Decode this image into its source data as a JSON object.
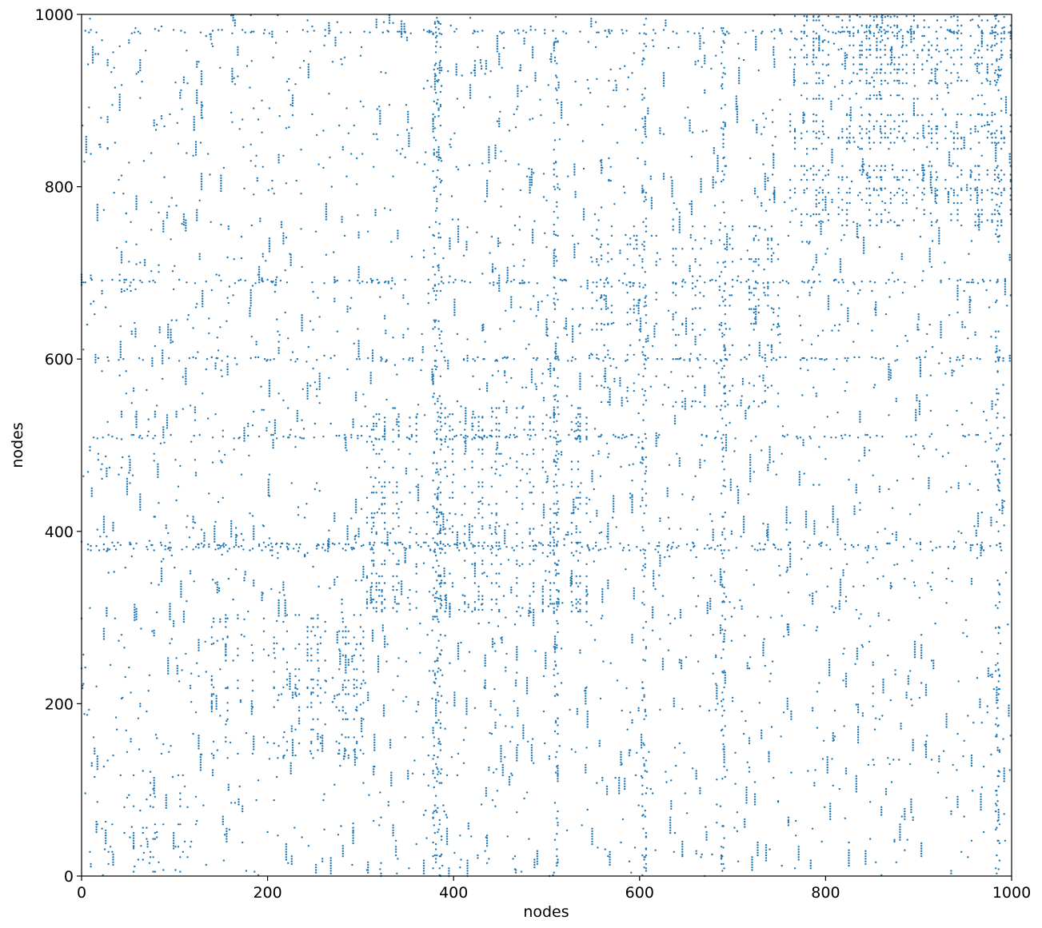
{
  "chart_data": {
    "type": "scatter",
    "title": "",
    "xlabel": "nodes",
    "ylabel": "nodes",
    "xlim": [
      0,
      1000
    ],
    "ylim": [
      0,
      1000
    ],
    "xticks": [
      0,
      200,
      400,
      600,
      800,
      1000
    ],
    "yticks": [
      0,
      200,
      400,
      600,
      800,
      1000
    ],
    "grid": false,
    "legend": "none",
    "marker_color": "#1f77b4",
    "description_of_structure": "",
    "blocks": [
      {
        "x_range": [
          0,
          125
        ],
        "y_range": [
          0,
          125
        ],
        "density": "medium"
      },
      {
        "x_range": [
          135,
          305
        ],
        "y_range": [
          135,
          305
        ],
        "density": "high"
      },
      {
        "x_range": [
          305,
          545
        ],
        "y_range": [
          305,
          545
        ],
        "density": "very high"
      },
      {
        "x_range": [
          545,
          755
        ],
        "y_range": [
          545,
          755
        ],
        "density": "high"
      },
      {
        "x_range": [
          755,
          1000
        ],
        "y_range": [
          755,
          1000
        ],
        "density": "very high"
      }
    ],
    "hub_rows": [
      380,
      385,
      510,
      600,
      690,
      980
    ],
    "hub_cols": [
      380,
      385,
      510,
      605,
      690,
      985
    ]
  }
}
